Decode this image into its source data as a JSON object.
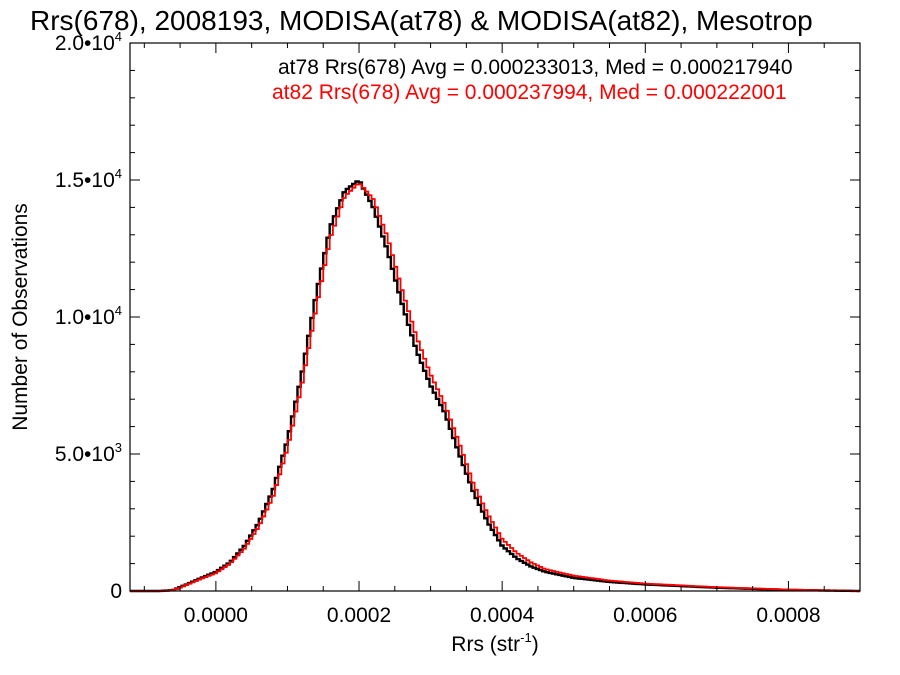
{
  "chart_data": {
    "type": "line",
    "title": "Rrs(678), 2008193, MODISA(at78) & MODISA(at82), Mesotrop",
    "xlabel": "Rrs (str",
    "xlabel_sup": "-1",
    "xlabel_tail": ")",
    "ylabel": "Number of Observations",
    "xlim": [
      -0.00012,
      0.0009
    ],
    "ylim": [
      0,
      20000
    ],
    "grid": false,
    "legend_position": "top-right",
    "x_ticks": [
      {
        "value": 0.0,
        "label": "0.0000"
      },
      {
        "value": 0.0002,
        "label": "0.0002"
      },
      {
        "value": 0.0004,
        "label": "0.0004"
      },
      {
        "value": 0.0006,
        "label": "0.0006"
      },
      {
        "value": 0.0008,
        "label": "0.0008"
      }
    ],
    "y_ticks": [
      {
        "value": 0,
        "mant": "0",
        "exp": ""
      },
      {
        "value": 5000,
        "mant": "5.0•10",
        "exp": "3"
      },
      {
        "value": 10000,
        "mant": "1.0•10",
        "exp": "4"
      },
      {
        "value": 15000,
        "mant": "1.5•10",
        "exp": "4"
      },
      {
        "value": 20000,
        "mant": "2.0•10",
        "exp": "4"
      }
    ],
    "series": [
      {
        "name": "at78",
        "label": "at78 Rrs(678) Avg = 0.000233013, Med = 0.000217940",
        "color": "#000000",
        "x": [
          -0.00012,
          -8e-05,
          -6e-05,
          -4e-05,
          -2e-05,
          0.0,
          2e-05,
          4e-05,
          6e-05,
          8e-05,
          0.0001,
          0.00012,
          0.00014,
          0.00016,
          0.00018,
          0.0002,
          0.00022,
          0.00024,
          0.00026,
          0.00028,
          0.0003,
          0.00032,
          0.00034,
          0.00036,
          0.00038,
          0.0004,
          0.00042,
          0.00044,
          0.00046,
          0.0005,
          0.00055,
          0.0006,
          0.0007,
          0.0008,
          0.0009
        ],
        "y": [
          0,
          0,
          30,
          250,
          480,
          700,
          1050,
          1650,
          2500,
          3700,
          5500,
          7900,
          10800,
          13300,
          14600,
          15000,
          14000,
          12400,
          10500,
          8800,
          7500,
          6500,
          5000,
          3600,
          2500,
          1650,
          1200,
          900,
          700,
          480,
          330,
          240,
          120,
          40,
          0
        ]
      },
      {
        "name": "at82",
        "label": "at82 Rrs(678) Avg = 0.000237994, Med = 0.000222001",
        "color": "#ff0000",
        "x": [
          -0.00012,
          -8e-05,
          -6e-05,
          -4e-05,
          -2e-05,
          0.0,
          2e-05,
          4e-05,
          6e-05,
          8e-05,
          0.0001,
          0.00012,
          0.00014,
          0.00016,
          0.00018,
          0.0002,
          0.00022,
          0.00024,
          0.00026,
          0.00028,
          0.0003,
          0.00032,
          0.00034,
          0.00036,
          0.00038,
          0.0004,
          0.00042,
          0.00044,
          0.00046,
          0.0005,
          0.00055,
          0.0006,
          0.0007,
          0.0008,
          0.0009
        ],
        "y": [
          0,
          0,
          20,
          230,
          450,
          650,
          1000,
          1550,
          2350,
          3450,
          5200,
          7500,
          10300,
          12900,
          14400,
          14900,
          14300,
          12900,
          11000,
          9300,
          7900,
          6800,
          5400,
          3900,
          2800,
          1900,
          1400,
          1050,
          800,
          560,
          380,
          270,
          140,
          50,
          0
        ]
      }
    ]
  }
}
